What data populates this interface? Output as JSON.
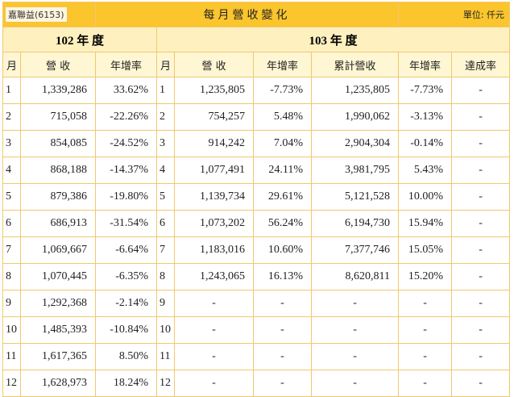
{
  "header": {
    "company": "嘉聯益(6153)",
    "title": "每月營收變化",
    "unit": "單位: 仟元"
  },
  "years": {
    "prev": "102 年 度",
    "curr": "103 年 度"
  },
  "columns": {
    "prev": [
      "月",
      "營 收",
      "年增率"
    ],
    "curr": [
      "月",
      "營 收",
      "年增率",
      "累計營收",
      "年增率",
      "達成率"
    ]
  },
  "rows": [
    {
      "m1": "1",
      "rev1": "1,339,286",
      "yoy1": "33.62%",
      "m2": "1",
      "rev2": "1,235,805",
      "yoy2": "-7.73%",
      "cum": "1,235,805",
      "cumyoy": "-7.73%",
      "ach": "-"
    },
    {
      "m1": "2",
      "rev1": "715,058",
      "yoy1": "-22.26%",
      "m2": "2",
      "rev2": "754,257",
      "yoy2": "5.48%",
      "cum": "1,990,062",
      "cumyoy": "-3.13%",
      "ach": "-"
    },
    {
      "m1": "3",
      "rev1": "854,085",
      "yoy1": "-24.52%",
      "m2": "3",
      "rev2": "914,242",
      "yoy2": "7.04%",
      "cum": "2,904,304",
      "cumyoy": "-0.14%",
      "ach": "-"
    },
    {
      "m1": "4",
      "rev1": "868,188",
      "yoy1": "-14.37%",
      "m2": "4",
      "rev2": "1,077,491",
      "yoy2": "24.11%",
      "cum": "3,981,795",
      "cumyoy": "5.43%",
      "ach": "-"
    },
    {
      "m1": "5",
      "rev1": "879,386",
      "yoy1": "-19.80%",
      "m2": "5",
      "rev2": "1,139,734",
      "yoy2": "29.61%",
      "cum": "5,121,528",
      "cumyoy": "10.00%",
      "ach": "-"
    },
    {
      "m1": "6",
      "rev1": "686,913",
      "yoy1": "-31.54%",
      "m2": "6",
      "rev2": "1,073,202",
      "yoy2": "56.24%",
      "cum": "6,194,730",
      "cumyoy": "15.94%",
      "ach": "-"
    },
    {
      "m1": "7",
      "rev1": "1,069,667",
      "yoy1": "-6.64%",
      "m2": "7",
      "rev2": "1,183,016",
      "yoy2": "10.60%",
      "cum": "7,377,746",
      "cumyoy": "15.05%",
      "ach": "-"
    },
    {
      "m1": "8",
      "rev1": "1,070,445",
      "yoy1": "-6.35%",
      "m2": "8",
      "rev2": "1,243,065",
      "yoy2": "16.13%",
      "cum": "8,620,811",
      "cumyoy": "15.20%",
      "ach": "-"
    },
    {
      "m1": "9",
      "rev1": "1,292,368",
      "yoy1": "-2.14%",
      "m2": "9",
      "rev2": "-",
      "yoy2": "-",
      "cum": "-",
      "cumyoy": "-",
      "ach": "-"
    },
    {
      "m1": "10",
      "rev1": "1,485,393",
      "yoy1": "-10.84%",
      "m2": "10",
      "rev2": "-",
      "yoy2": "-",
      "cum": "-",
      "cumyoy": "-",
      "ach": "-"
    },
    {
      "m1": "11",
      "rev1": "1,617,365",
      "yoy1": "8.50%",
      "m2": "11",
      "rev2": "-",
      "yoy2": "-",
      "cum": "-",
      "cumyoy": "-",
      "ach": "-"
    },
    {
      "m1": "12",
      "rev1": "1,628,973",
      "yoy1": "18.24%",
      "m2": "12",
      "rev2": "-",
      "yoy2": "-",
      "cum": "-",
      "cumyoy": "-",
      "ach": "-"
    }
  ]
}
